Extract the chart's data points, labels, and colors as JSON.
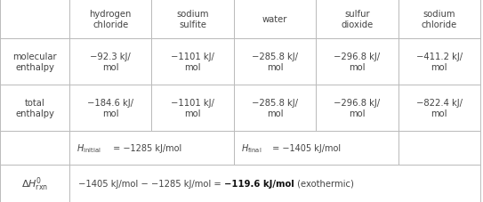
{
  "col_headers": [
    "hydrogen\nchloride",
    "sodium\nsulfite",
    "water",
    "sulfur\ndioxide",
    "sodium\nchloride"
  ],
  "mol_enthalpy": [
    "−92.3 kJ/\nmol",
    "−1101 kJ/\nmol",
    "−285.8 kJ/\nmol",
    "−296.8 kJ/\nmol",
    "−411.2 kJ/\nmol"
  ],
  "tot_enthalpy": [
    "−184.6 kJ/\nmol",
    "−1101 kJ/\nmol",
    "−285.8 kJ/\nmol",
    "−296.8 kJ/\nmol",
    "−822.4 kJ/\nmol"
  ],
  "bg_color": "#ffffff",
  "line_color": "#bbbbbb",
  "text_color": "#444444",
  "bold_color": "#111111",
  "figsize": [
    5.43,
    2.28
  ],
  "dpi": 100
}
